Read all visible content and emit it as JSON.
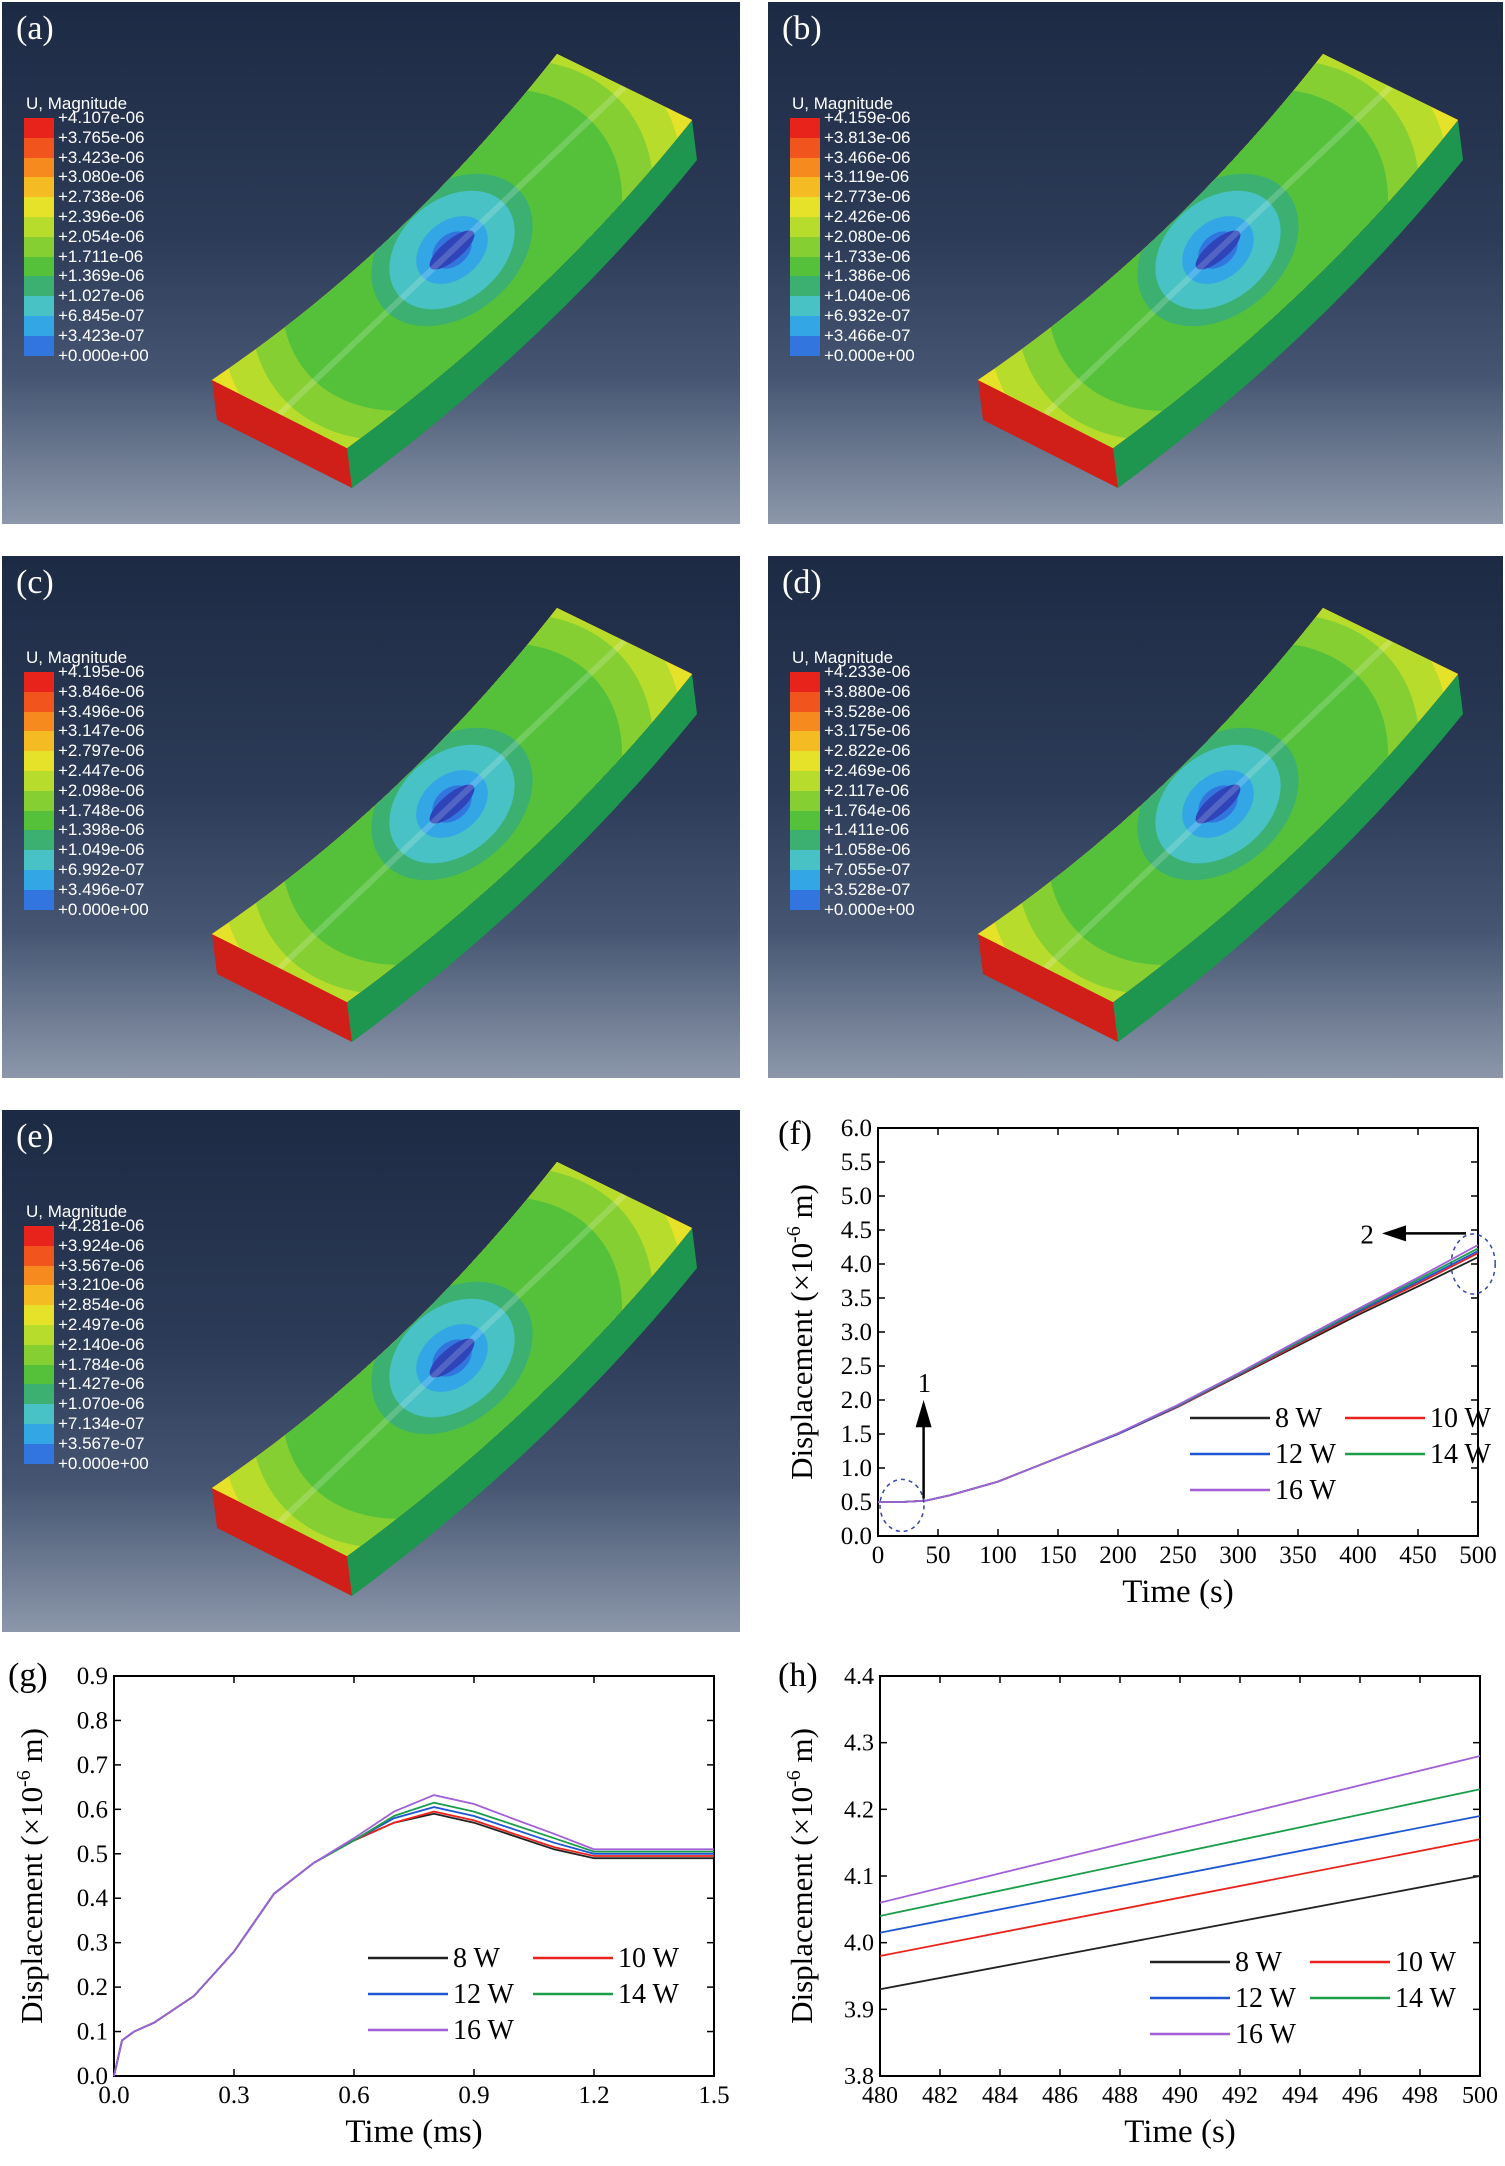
{
  "panels": [
    {
      "label": "(a)",
      "legend_title": "U, Magnitude",
      "values": [
        "+4.107e-06",
        "+3.765e-06",
        "+3.423e-06",
        "+3.080e-06",
        "+2.738e-06",
        "+2.396e-06",
        "+2.054e-06",
        "+1.711e-06",
        "+1.369e-06",
        "+1.027e-06",
        "+6.845e-07",
        "+3.423e-07",
        "+0.000e+00"
      ]
    },
    {
      "label": "(b)",
      "legend_title": "U, Magnitude",
      "values": [
        "+4.159e-06",
        "+3.813e-06",
        "+3.466e-06",
        "+3.119e-06",
        "+2.773e-06",
        "+2.426e-06",
        "+2.080e-06",
        "+1.733e-06",
        "+1.386e-06",
        "+1.040e-06",
        "+6.932e-07",
        "+3.466e-07",
        "+0.000e+00"
      ]
    },
    {
      "label": "(c)",
      "legend_title": "U, Magnitude",
      "values": [
        "+4.195e-06",
        "+3.846e-06",
        "+3.496e-06",
        "+3.147e-06",
        "+2.797e-06",
        "+2.447e-06",
        "+2.098e-06",
        "+1.748e-06",
        "+1.398e-06",
        "+1.049e-06",
        "+6.992e-07",
        "+3.496e-07",
        "+0.000e+00"
      ]
    },
    {
      "label": "(d)",
      "legend_title": "U, Magnitude",
      "values": [
        "+4.233e-06",
        "+3.880e-06",
        "+3.528e-06",
        "+3.175e-06",
        "+2.822e-06",
        "+2.469e-06",
        "+2.117e-06",
        "+1.764e-06",
        "+1.411e-06",
        "+1.058e-06",
        "+7.055e-07",
        "+3.528e-07",
        "+0.000e+00"
      ]
    },
    {
      "label": "(e)",
      "legend_title": "U, Magnitude",
      "values": [
        "+4.281e-06",
        "+3.924e-06",
        "+3.567e-06",
        "+3.210e-06",
        "+2.854e-06",
        "+2.497e-06",
        "+2.140e-06",
        "+1.784e-06",
        "+1.427e-06",
        "+1.070e-06",
        "+7.134e-07",
        "+3.567e-07",
        "+0.000e+00"
      ]
    }
  ],
  "contour_colors": [
    "#e8231c",
    "#f1541c",
    "#f68a1e",
    "#f4bb22",
    "#e6e22a",
    "#b8dc2c",
    "#86cf33",
    "#55c13b",
    "#3cb070",
    "#48c2c4",
    "#33a6e6",
    "#3275de",
    "#2f4fc0"
  ],
  "legend_series": [
    "8 W",
    "10 W",
    "12 W",
    "14 W",
    "16 W"
  ],
  "series_colors": {
    "8 W": "#222222",
    "10 W": "#e8231c",
    "12 W": "#1f56d4",
    "14 W": "#1a9e4a",
    "16 W": "#a260d8"
  },
  "chart_data": [
    {
      "id": "f",
      "label": "(f)",
      "type": "line",
      "xlabel": "Time (s)",
      "ylabel": "Displacement (×10-6 m)",
      "xlim": [
        0,
        500
      ],
      "ylim": [
        0,
        6.0
      ],
      "xticks": [
        0,
        50,
        100,
        150,
        200,
        250,
        300,
        350,
        400,
        450,
        500
      ],
      "yticks": [
        0.0,
        0.5,
        1.0,
        1.5,
        2.0,
        2.5,
        3.0,
        3.5,
        4.0,
        4.5,
        5.0,
        5.5,
        6.0
      ],
      "ytick_labels": [
        "0.0",
        "0.5",
        "1.0",
        "1.5",
        "2.0",
        "2.5",
        "3.0",
        "3.5",
        "4.0",
        "4.5",
        "5.0",
        "5.5",
        "6.0"
      ],
      "annotations": [
        "1",
        "2"
      ],
      "series": [
        {
          "name": "8 W",
          "x": [
            0,
            20,
            40,
            60,
            100,
            150,
            200,
            250,
            300,
            350,
            400,
            450,
            500
          ],
          "y": [
            0.5,
            0.5,
            0.52,
            0.6,
            0.8,
            1.15,
            1.5,
            1.9,
            2.35,
            2.8,
            3.25,
            3.67,
            4.1
          ]
        },
        {
          "name": "10 W",
          "x": [
            0,
            20,
            40,
            60,
            100,
            150,
            200,
            250,
            300,
            350,
            400,
            450,
            500
          ],
          "y": [
            0.5,
            0.5,
            0.52,
            0.6,
            0.8,
            1.15,
            1.5,
            1.9,
            2.36,
            2.82,
            3.28,
            3.71,
            4.16
          ]
        },
        {
          "name": "12 W",
          "x": [
            0,
            20,
            40,
            60,
            100,
            150,
            200,
            250,
            300,
            350,
            400,
            450,
            500
          ],
          "y": [
            0.5,
            0.5,
            0.52,
            0.6,
            0.8,
            1.15,
            1.5,
            1.91,
            2.37,
            2.84,
            3.3,
            3.74,
            4.19
          ]
        },
        {
          "name": "14 W",
          "x": [
            0,
            20,
            40,
            60,
            100,
            150,
            200,
            250,
            300,
            350,
            400,
            450,
            500
          ],
          "y": [
            0.5,
            0.5,
            0.52,
            0.6,
            0.8,
            1.15,
            1.51,
            1.92,
            2.38,
            2.85,
            3.32,
            3.77,
            4.23
          ]
        },
        {
          "name": "16 W",
          "x": [
            0,
            20,
            40,
            60,
            100,
            150,
            200,
            250,
            300,
            350,
            400,
            450,
            500
          ],
          "y": [
            0.5,
            0.5,
            0.52,
            0.6,
            0.8,
            1.15,
            1.51,
            1.93,
            2.39,
            2.87,
            3.34,
            3.8,
            4.28
          ]
        }
      ]
    },
    {
      "id": "g",
      "label": "(g)",
      "type": "line",
      "xlabel": "Time (ms)",
      "ylabel": "Displacement (×10-6 m)",
      "xlim": [
        0,
        1.5
      ],
      "ylim": [
        0,
        0.9
      ],
      "xticks": [
        0.0,
        0.3,
        0.6,
        0.9,
        1.2,
        1.5
      ],
      "xtick_labels": [
        "0.0",
        "0.3",
        "0.6",
        "0.9",
        "1.2",
        "1.5"
      ],
      "yticks": [
        0.0,
        0.1,
        0.2,
        0.3,
        0.4,
        0.5,
        0.6,
        0.7,
        0.8,
        0.9
      ],
      "ytick_labels": [
        "0.0",
        "0.1",
        "0.2",
        "0.3",
        "0.4",
        "0.5",
        "0.6",
        "0.7",
        "0.8",
        "0.9"
      ],
      "series": [
        {
          "name": "8 W",
          "x": [
            0,
            0.02,
            0.05,
            0.1,
            0.2,
            0.3,
            0.4,
            0.5,
            0.6,
            0.7,
            0.8,
            0.9,
            1.0,
            1.1,
            1.2,
            1.5
          ],
          "y": [
            0,
            0.08,
            0.1,
            0.12,
            0.18,
            0.28,
            0.41,
            0.48,
            0.53,
            0.57,
            0.59,
            0.57,
            0.54,
            0.51,
            0.49,
            0.49
          ]
        },
        {
          "name": "10 W",
          "x": [
            0,
            0.02,
            0.05,
            0.1,
            0.2,
            0.3,
            0.4,
            0.5,
            0.6,
            0.7,
            0.8,
            0.9,
            1.0,
            1.1,
            1.2,
            1.5
          ],
          "y": [
            0,
            0.08,
            0.1,
            0.12,
            0.18,
            0.28,
            0.41,
            0.48,
            0.53,
            0.57,
            0.595,
            0.575,
            0.545,
            0.515,
            0.495,
            0.495
          ]
        },
        {
          "name": "12 W",
          "x": [
            0,
            0.02,
            0.05,
            0.1,
            0.2,
            0.3,
            0.4,
            0.5,
            0.6,
            0.7,
            0.8,
            0.9,
            1.0,
            1.1,
            1.2,
            1.5
          ],
          "y": [
            0,
            0.08,
            0.1,
            0.12,
            0.18,
            0.28,
            0.41,
            0.48,
            0.53,
            0.58,
            0.605,
            0.585,
            0.555,
            0.525,
            0.5,
            0.5
          ]
        },
        {
          "name": "14 W",
          "x": [
            0,
            0.02,
            0.05,
            0.1,
            0.2,
            0.3,
            0.4,
            0.5,
            0.6,
            0.7,
            0.8,
            0.9,
            1.0,
            1.1,
            1.2,
            1.5
          ],
          "y": [
            0,
            0.08,
            0.1,
            0.12,
            0.18,
            0.28,
            0.41,
            0.48,
            0.53,
            0.585,
            0.615,
            0.595,
            0.565,
            0.535,
            0.505,
            0.505
          ]
        },
        {
          "name": "16 W",
          "x": [
            0,
            0.02,
            0.05,
            0.1,
            0.2,
            0.3,
            0.4,
            0.5,
            0.6,
            0.7,
            0.8,
            0.9,
            1.0,
            1.1,
            1.2,
            1.5
          ],
          "y": [
            0,
            0.08,
            0.1,
            0.12,
            0.18,
            0.28,
            0.41,
            0.48,
            0.535,
            0.595,
            0.632,
            0.612,
            0.578,
            0.545,
            0.51,
            0.51
          ]
        }
      ]
    },
    {
      "id": "h",
      "label": "(h)",
      "type": "line",
      "xlabel": "Time (s)",
      "ylabel": "Displacement (×10-6 m)",
      "xlim": [
        480,
        500
      ],
      "ylim": [
        3.8,
        4.4
      ],
      "xticks": [
        480,
        482,
        484,
        486,
        488,
        490,
        492,
        494,
        496,
        498,
        500
      ],
      "yticks": [
        3.8,
        3.9,
        4.0,
        4.1,
        4.2,
        4.3,
        4.4
      ],
      "ytick_labels": [
        "3.8",
        "3.9",
        "4.0",
        "4.1",
        "4.2",
        "4.3",
        "4.4"
      ],
      "series": [
        {
          "name": "8 W",
          "x": [
            480,
            500
          ],
          "y": [
            3.93,
            4.1
          ]
        },
        {
          "name": "10 W",
          "x": [
            480,
            500
          ],
          "y": [
            3.98,
            4.155
          ]
        },
        {
          "name": "12 W",
          "x": [
            480,
            500
          ],
          "y": [
            4.015,
            4.19
          ]
        },
        {
          "name": "14 W",
          "x": [
            480,
            500
          ],
          "y": [
            4.04,
            4.23
          ]
        },
        {
          "name": "16 W",
          "x": [
            480,
            500
          ],
          "y": [
            4.06,
            4.28
          ]
        }
      ]
    }
  ]
}
